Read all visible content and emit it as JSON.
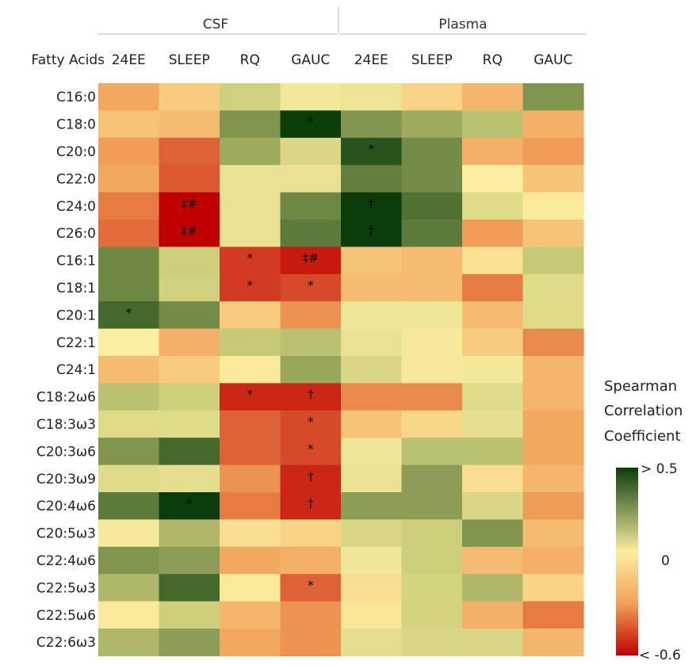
{
  "chart_data": {
    "type": "heatmap",
    "title": "",
    "row_header": "Fatty Acids",
    "groups": [
      {
        "name": "CSF",
        "columns": [
          "24EE",
          "SLEEP",
          "RQ",
          "GAUC"
        ]
      },
      {
        "name": "Plasma",
        "columns": [
          "24EE",
          "SLEEP",
          "RQ",
          "GAUC"
        ]
      }
    ],
    "columns": [
      "24EE",
      "SLEEP",
      "RQ",
      "GAUC",
      "24EE",
      "SLEEP",
      "RQ",
      "GAUC"
    ],
    "rows": [
      "C16:0",
      "C18:0",
      "C20:0",
      "C22:0",
      "C24:0",
      "C26:0",
      "C16:1",
      "C18:1",
      "C20:1",
      "C22:1",
      "C24:1",
      "C18:2ω6",
      "C18:3ω3",
      "C20:3ω6",
      "C20:3ω9",
      "C20:4ω6",
      "C20:5ω3",
      "C22:4ω6",
      "C22:5ω3",
      "C22:5ω6",
      "C22:6ω3"
    ],
    "values": [
      [
        -0.25,
        -0.12,
        0.15,
        0.03,
        0.05,
        -0.1,
        -0.2,
        0.3
      ],
      [
        -0.15,
        -0.18,
        0.3,
        0.5,
        0.3,
        0.25,
        0.2,
        -0.22
      ],
      [
        -0.28,
        -0.4,
        0.25,
        0.12,
        0.45,
        0.32,
        -0.22,
        -0.28
      ],
      [
        -0.25,
        -0.42,
        0.06,
        0.06,
        0.35,
        0.32,
        0.0,
        -0.15
      ],
      [
        -0.35,
        -0.6,
        0.06,
        0.33,
        0.55,
        0.38,
        0.1,
        -0.02
      ],
      [
        -0.38,
        -0.6,
        0.06,
        0.36,
        0.5,
        0.36,
        -0.28,
        -0.15
      ],
      [
        0.33,
        0.16,
        -0.48,
        -0.55,
        -0.15,
        -0.18,
        -0.05,
        0.18
      ],
      [
        0.33,
        0.15,
        -0.48,
        -0.45,
        -0.18,
        -0.18,
        -0.35,
        0.1
      ],
      [
        0.4,
        0.32,
        -0.12,
        -0.3,
        0.04,
        0.04,
        -0.18,
        0.1
      ],
      [
        0.0,
        -0.22,
        0.18,
        0.2,
        0.06,
        0.02,
        -0.12,
        -0.32
      ],
      [
        -0.18,
        -0.12,
        -0.02,
        0.26,
        0.12,
        0.02,
        0.03,
        -0.2
      ],
      [
        0.2,
        0.16,
        -0.52,
        -0.52,
        -0.32,
        -0.32,
        0.1,
        -0.2
      ],
      [
        0.1,
        0.1,
        -0.4,
        -0.45,
        -0.15,
        -0.08,
        0.08,
        -0.25
      ],
      [
        0.3,
        0.4,
        -0.4,
        -0.45,
        0.04,
        0.2,
        0.2,
        -0.25
      ],
      [
        0.1,
        0.08,
        -0.3,
        -0.52,
        0.06,
        0.28,
        -0.06,
        -0.2
      ],
      [
        0.36,
        0.5,
        -0.35,
        -0.52,
        0.28,
        0.28,
        0.12,
        -0.28
      ],
      [
        0.02,
        0.22,
        -0.06,
        -0.1,
        0.12,
        0.16,
        0.3,
        -0.18
      ],
      [
        0.3,
        0.28,
        -0.25,
        -0.22,
        0.04,
        0.16,
        -0.18,
        -0.22
      ],
      [
        0.22,
        0.4,
        -0.02,
        -0.4,
        -0.06,
        0.14,
        0.22,
        -0.1
      ],
      [
        -0.02,
        0.16,
        -0.2,
        -0.3,
        -0.03,
        0.14,
        -0.22,
        -0.35
      ],
      [
        0.22,
        0.28,
        -0.25,
        -0.3,
        0.08,
        0.12,
        0.12,
        -0.2
      ]
    ],
    "annotations": [
      {
        "row": 1,
        "col": 3,
        "text": "*"
      },
      {
        "row": 2,
        "col": 4,
        "text": "*"
      },
      {
        "row": 4,
        "col": 1,
        "text": "‡#"
      },
      {
        "row": 4,
        "col": 4,
        "text": "†"
      },
      {
        "row": 5,
        "col": 1,
        "text": "‡#"
      },
      {
        "row": 5,
        "col": 4,
        "text": "†"
      },
      {
        "row": 6,
        "col": 2,
        "text": "*"
      },
      {
        "row": 6,
        "col": 3,
        "text": "‡#"
      },
      {
        "row": 7,
        "col": 2,
        "text": "*"
      },
      {
        "row": 7,
        "col": 3,
        "text": "*"
      },
      {
        "row": 8,
        "col": 0,
        "text": "*"
      },
      {
        "row": 11,
        "col": 2,
        "text": "*"
      },
      {
        "row": 11,
        "col": 3,
        "text": "†"
      },
      {
        "row": 12,
        "col": 3,
        "text": "*"
      },
      {
        "row": 13,
        "col": 3,
        "text": "*"
      },
      {
        "row": 14,
        "col": 3,
        "text": "†"
      },
      {
        "row": 15,
        "col": 1,
        "text": "*"
      },
      {
        "row": 15,
        "col": 3,
        "text": "†"
      },
      {
        "row": 18,
        "col": 3,
        "text": "*"
      }
    ],
    "color_scale": {
      "min": -0.6,
      "mid": 0,
      "max": 0.5,
      "min_color": "#c00000",
      "mid_color": "#fbeea0",
      "max_color": "#0b3d0b"
    },
    "legend": {
      "title_lines": [
        "Spearman",
        "Correlation",
        "Coefficient"
      ],
      "max_label": "> 0.5",
      "mid_label": "0",
      "min_label": "< -0.6",
      "placement": "right"
    }
  }
}
